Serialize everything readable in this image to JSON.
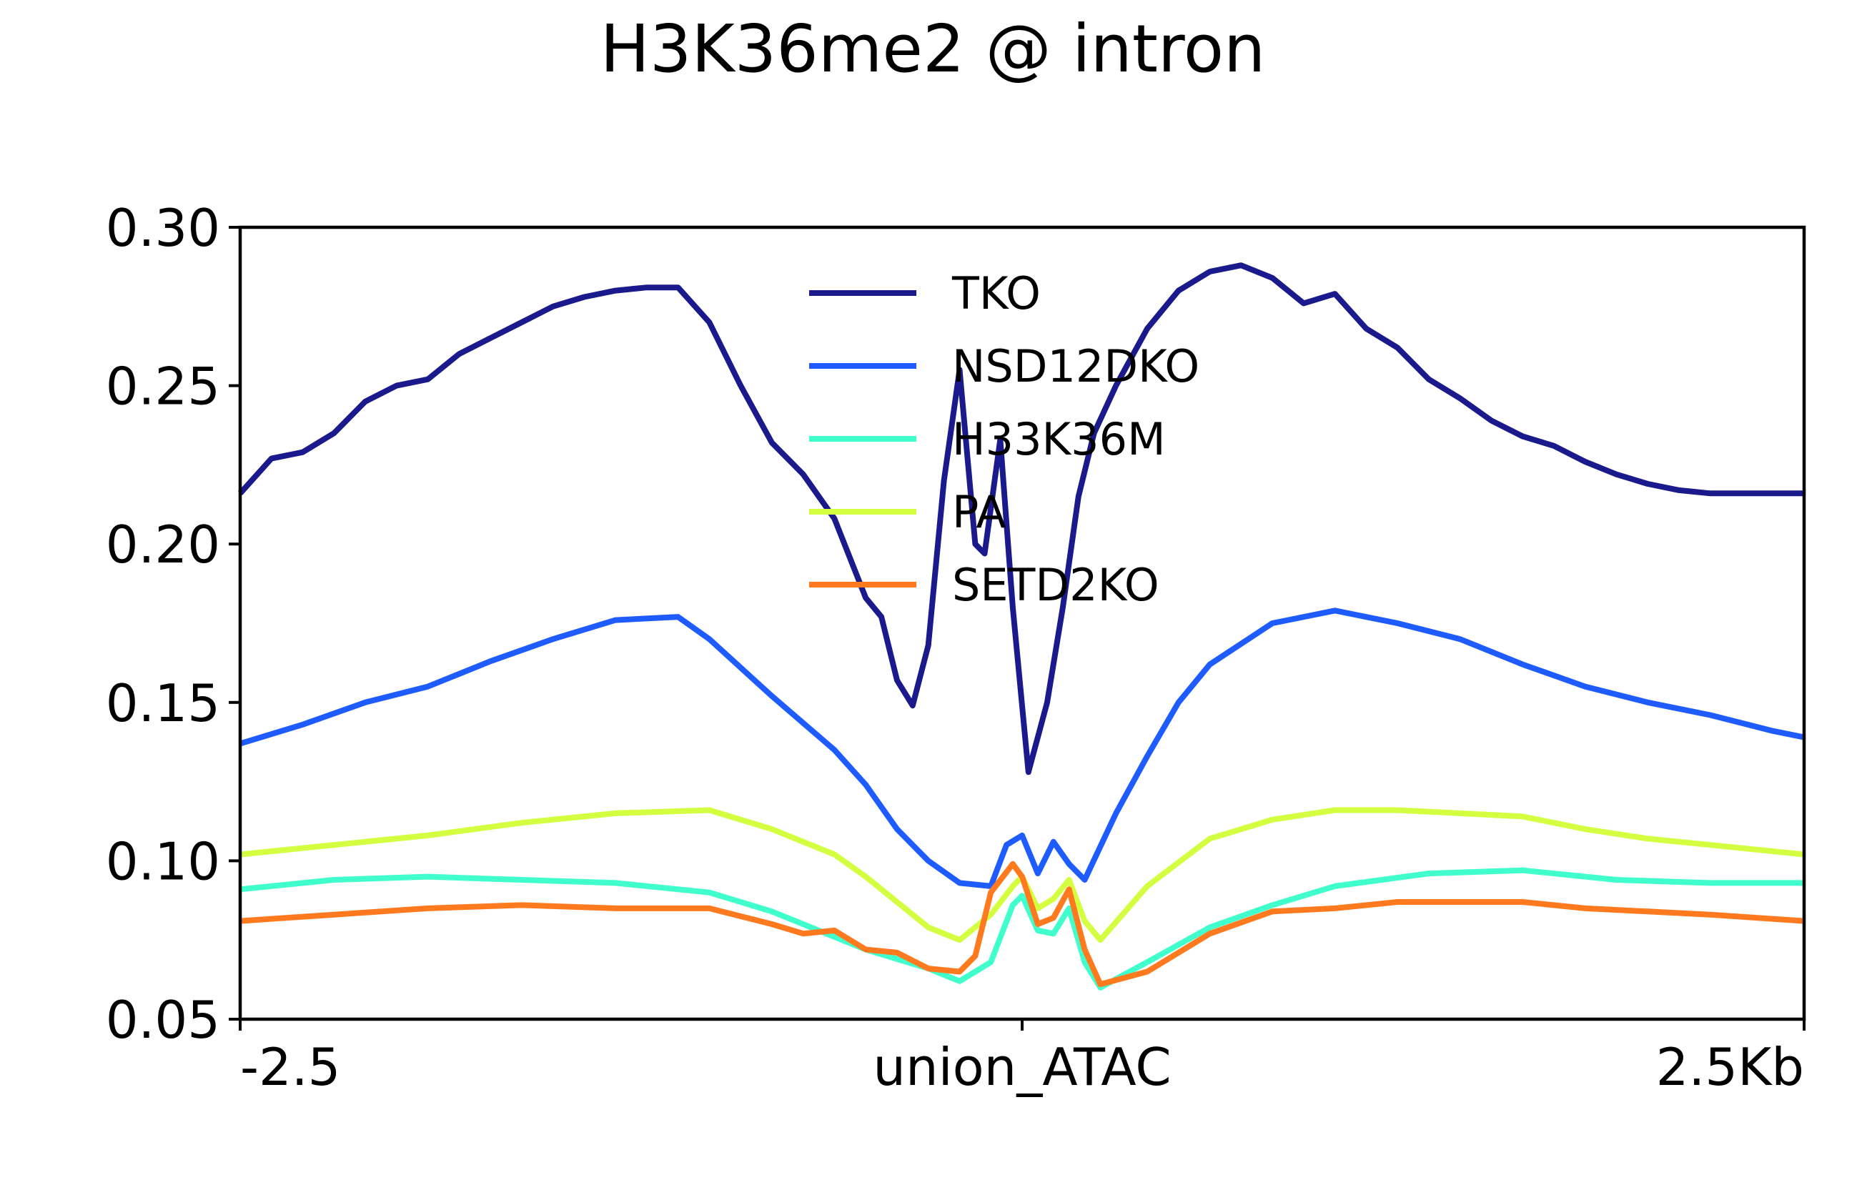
{
  "chart_data": {
    "type": "line",
    "title": "H3K36me2 @ intron",
    "xlabel": "",
    "ylabel": "",
    "ylim": [
      0.05,
      0.3
    ],
    "xlim": [
      -2.5,
      2.5
    ],
    "yticks": [
      0.05,
      0.1,
      0.15,
      0.2,
      0.25,
      0.3
    ],
    "ytick_labels": [
      "0.05",
      "0.10",
      "0.15",
      "0.20",
      "0.25",
      "0.30"
    ],
    "xticks": [
      -2.5,
      0,
      2.5
    ],
    "xtick_labels": [
      "-2.5",
      "union_ATAC",
      "2.5Kb"
    ],
    "grid": false,
    "legend_position": "top-center",
    "series": [
      {
        "name": "TKO",
        "color": "#1a1a8c",
        "x": [
          -2.5,
          -2.4,
          -2.3,
          -2.2,
          -2.1,
          -2.0,
          -1.9,
          -1.8,
          -1.7,
          -1.6,
          -1.5,
          -1.4,
          -1.3,
          -1.2,
          -1.1,
          -1.0,
          -0.9,
          -0.8,
          -0.7,
          -0.6,
          -0.5,
          -0.45,
          -0.4,
          -0.35,
          -0.3,
          -0.25,
          -0.2,
          -0.15,
          -0.12,
          -0.07,
          -0.03,
          0.02,
          0.08,
          0.13,
          0.18,
          0.23,
          0.3,
          0.4,
          0.5,
          0.6,
          0.7,
          0.8,
          0.9,
          1.0,
          1.1,
          1.2,
          1.3,
          1.4,
          1.5,
          1.6,
          1.7,
          1.8,
          1.9,
          2.0,
          2.1,
          2.2,
          2.3,
          2.4,
          2.5
        ],
        "y": [
          0.216,
          0.227,
          0.229,
          0.235,
          0.245,
          0.25,
          0.252,
          0.26,
          0.265,
          0.27,
          0.275,
          0.278,
          0.28,
          0.281,
          0.281,
          0.27,
          0.25,
          0.232,
          0.222,
          0.208,
          0.183,
          0.177,
          0.157,
          0.149,
          0.168,
          0.22,
          0.255,
          0.2,
          0.197,
          0.233,
          0.18,
          0.128,
          0.15,
          0.18,
          0.215,
          0.235,
          0.25,
          0.268,
          0.28,
          0.286,
          0.288,
          0.284,
          0.276,
          0.279,
          0.268,
          0.262,
          0.252,
          0.246,
          0.239,
          0.234,
          0.231,
          0.226,
          0.222,
          0.219,
          0.217,
          0.216,
          0.216,
          0.216,
          0.216
        ]
      },
      {
        "name": "NSD12DKO",
        "color": "#1f5cff",
        "x": [
          -2.5,
          -2.3,
          -2.1,
          -1.9,
          -1.7,
          -1.5,
          -1.3,
          -1.1,
          -1.0,
          -0.8,
          -0.6,
          -0.5,
          -0.4,
          -0.3,
          -0.2,
          -0.1,
          -0.05,
          0.0,
          0.05,
          0.1,
          0.15,
          0.2,
          0.3,
          0.4,
          0.5,
          0.6,
          0.8,
          1.0,
          1.2,
          1.4,
          1.6,
          1.8,
          2.0,
          2.2,
          2.4,
          2.5
        ],
        "y": [
          0.137,
          0.143,
          0.15,
          0.155,
          0.163,
          0.17,
          0.176,
          0.177,
          0.17,
          0.152,
          0.135,
          0.124,
          0.11,
          0.1,
          0.093,
          0.092,
          0.105,
          0.108,
          0.096,
          0.106,
          0.099,
          0.094,
          0.115,
          0.133,
          0.15,
          0.162,
          0.175,
          0.179,
          0.175,
          0.17,
          0.162,
          0.155,
          0.15,
          0.146,
          0.141,
          0.139
        ]
      },
      {
        "name": "H33K36M",
        "color": "#40ffcc",
        "x": [
          -2.5,
          -2.2,
          -1.9,
          -1.6,
          -1.3,
          -1.0,
          -0.8,
          -0.6,
          -0.5,
          -0.4,
          -0.3,
          -0.2,
          -0.1,
          -0.03,
          0.0,
          0.05,
          0.1,
          0.15,
          0.2,
          0.25,
          0.4,
          0.6,
          0.8,
          1.0,
          1.3,
          1.6,
          1.9,
          2.2,
          2.5
        ],
        "y": [
          0.091,
          0.094,
          0.095,
          0.094,
          0.093,
          0.09,
          0.084,
          0.076,
          0.072,
          0.069,
          0.066,
          0.062,
          0.068,
          0.086,
          0.089,
          0.078,
          0.077,
          0.085,
          0.068,
          0.06,
          0.068,
          0.079,
          0.086,
          0.092,
          0.096,
          0.097,
          0.094,
          0.093,
          0.093
        ]
      },
      {
        "name": "PA",
        "color": "#d4ff40",
        "x": [
          -2.5,
          -2.2,
          -1.9,
          -1.6,
          -1.3,
          -1.0,
          -0.8,
          -0.6,
          -0.5,
          -0.4,
          -0.3,
          -0.2,
          -0.1,
          -0.03,
          0.0,
          0.05,
          0.1,
          0.15,
          0.2,
          0.25,
          0.4,
          0.6,
          0.8,
          1.0,
          1.2,
          1.4,
          1.6,
          1.8,
          2.0,
          2.2,
          2.5
        ],
        "y": [
          0.102,
          0.105,
          0.108,
          0.112,
          0.115,
          0.116,
          0.11,
          0.102,
          0.095,
          0.087,
          0.079,
          0.075,
          0.083,
          0.092,
          0.095,
          0.085,
          0.088,
          0.094,
          0.081,
          0.075,
          0.092,
          0.107,
          0.113,
          0.116,
          0.116,
          0.115,
          0.114,
          0.11,
          0.107,
          0.105,
          0.102
        ]
      },
      {
        "name": "SETD2KO",
        "color": "#ff7a1f",
        "x": [
          -2.5,
          -2.2,
          -1.9,
          -1.6,
          -1.3,
          -1.0,
          -0.8,
          -0.7,
          -0.6,
          -0.5,
          -0.4,
          -0.3,
          -0.2,
          -0.15,
          -0.1,
          -0.03,
          0.0,
          0.05,
          0.1,
          0.15,
          0.2,
          0.25,
          0.4,
          0.6,
          0.8,
          1.0,
          1.2,
          1.4,
          1.6,
          1.8,
          2.0,
          2.2,
          2.5
        ],
        "y": [
          0.081,
          0.083,
          0.085,
          0.086,
          0.085,
          0.085,
          0.08,
          0.077,
          0.078,
          0.072,
          0.071,
          0.066,
          0.065,
          0.07,
          0.09,
          0.099,
          0.095,
          0.08,
          0.082,
          0.091,
          0.072,
          0.061,
          0.065,
          0.077,
          0.084,
          0.085,
          0.087,
          0.087,
          0.087,
          0.085,
          0.084,
          0.083,
          0.081
        ]
      }
    ]
  }
}
